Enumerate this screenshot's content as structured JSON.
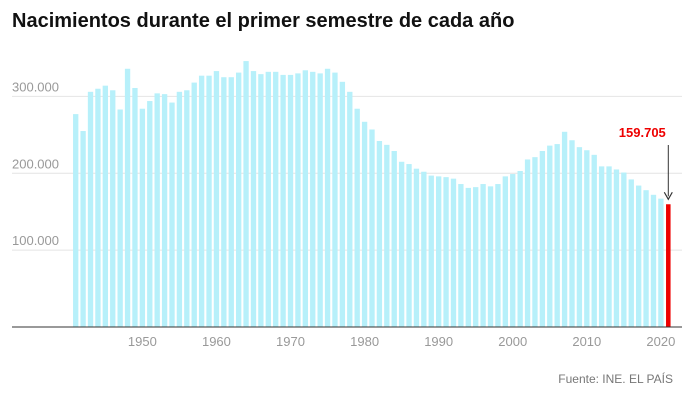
{
  "chart_data": {
    "type": "bar",
    "title": "Nacimientos durante el primer semestre de cada año",
    "source": "Fuente: INE. EL PAÍS",
    "x_start": 1941,
    "x_end": 2021,
    "x_ticks": [
      "1950",
      "1960",
      "1970",
      "1980",
      "1990",
      "2000",
      "2010",
      "2020"
    ],
    "y_ticks": [
      {
        "value": 100000,
        "label": "100.000"
      },
      {
        "value": 200000,
        "label": "200.000"
      },
      {
        "value": 300000,
        "label": "300.000"
      }
    ],
    "ylim": [
      0,
      350000
    ],
    "values": [
      277000,
      255000,
      306000,
      310000,
      314000,
      308000,
      283000,
      336000,
      311000,
      284000,
      294000,
      304000,
      303000,
      292000,
      306000,
      308000,
      318000,
      327000,
      327000,
      333000,
      325000,
      325000,
      331000,
      346000,
      333000,
      329000,
      332000,
      332000,
      328000,
      328000,
      330000,
      334000,
      332000,
      330000,
      336000,
      331000,
      319000,
      306000,
      284000,
      267000,
      257000,
      242000,
      237000,
      229000,
      215000,
      212000,
      206000,
      202000,
      197000,
      196000,
      195000,
      193000,
      186000,
      181000,
      182000,
      186000,
      183000,
      186000,
      196000,
      199000,
      203000,
      218000,
      221000,
      229000,
      236000,
      238000,
      254000,
      243000,
      234000,
      230000,
      224000,
      209000,
      209000,
      205000,
      201000,
      192000,
      184000,
      178000,
      172000,
      167000,
      159705
    ],
    "highlight": {
      "index": 80,
      "label": "159.705",
      "color": "#ee0000"
    },
    "bar_color": "#b7f0fa"
  }
}
